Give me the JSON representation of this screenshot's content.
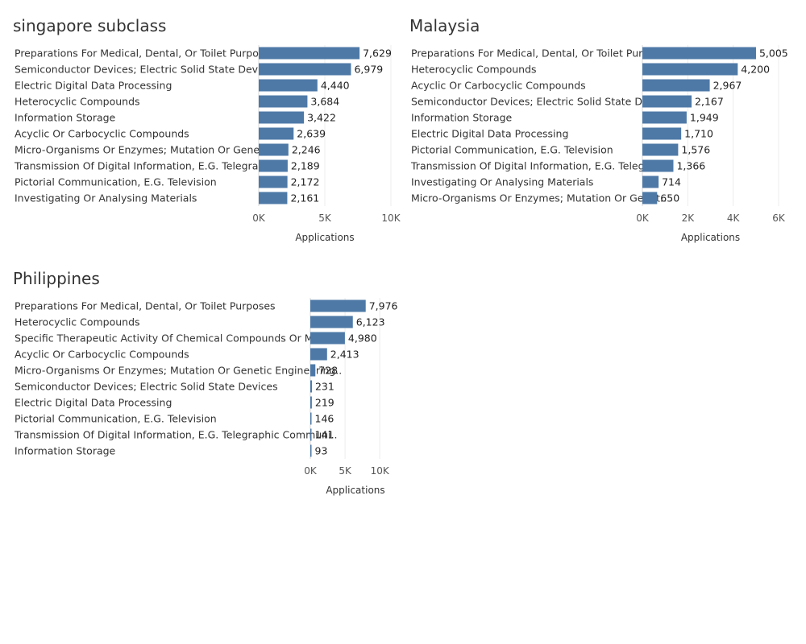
{
  "colors": {
    "bar": "#4e79a7",
    "text": "#333333",
    "axis_text": "#555555",
    "grid": "#ececec"
  },
  "chart_data": [
    {
      "type": "bar",
      "orientation": "horizontal",
      "title": "singapore subclass",
      "xlabel": "Applications",
      "xlim": [
        0,
        10000
      ],
      "xticks": [
        0,
        5000,
        10000
      ],
      "xtick_labels": [
        "0K",
        "5K",
        "10K"
      ],
      "categories": [
        "Preparations For Medical, Dental, Or Toilet Purposes",
        "Semiconductor Devices; Electric Solid State Devices",
        "Electric Digital Data Processing",
        "Heterocyclic Compounds",
        "Information Storage",
        "Acyclic Or Carbocyclic Compounds",
        "Micro-Organisms Or Enzymes; Mutation Or Genetic ..",
        "Transmission Of Digital Information, E.G. Telegraphi..",
        "Pictorial Communication, E.G. Television",
        "Investigating Or Analysing Materials"
      ],
      "values": [
        7629,
        6979,
        4440,
        3684,
        3422,
        2639,
        2246,
        2189,
        2172,
        2161
      ],
      "value_labels": [
        "7,629",
        "6,979",
        "4,440",
        "3,684",
        "3,422",
        "2,639",
        "2,246",
        "2,189",
        "2,172",
        "2,161"
      ]
    },
    {
      "type": "bar",
      "orientation": "horizontal",
      "title": "Malaysia",
      "xlabel": "Applications",
      "xlim": [
        0,
        6000
      ],
      "xticks": [
        0,
        2000,
        4000,
        6000
      ],
      "xtick_labels": [
        "0K",
        "2K",
        "4K",
        "6K"
      ],
      "categories": [
        "Preparations For Medical, Dental, Or Toilet Purpo..",
        "Heterocyclic Compounds",
        "Acyclic Or Carbocyclic Compounds",
        "Semiconductor Devices; Electric Solid State Devic..",
        "Information Storage",
        "Electric Digital Data Processing",
        "Pictorial Communication, E.G. Television",
        "Transmission Of Digital Information, E.G. Telegra..",
        "Investigating Or Analysing Materials",
        "Micro-Organisms Or Enzymes; Mutation Or Genet.."
      ],
      "values": [
        5005,
        4200,
        2967,
        2167,
        1949,
        1710,
        1576,
        1366,
        714,
        650
      ],
      "value_labels": [
        "5,005",
        "4,200",
        "2,967",
        "2,167",
        "1,949",
        "1,710",
        "1,576",
        "1,366",
        "714",
        "650"
      ]
    },
    {
      "type": "bar",
      "orientation": "horizontal",
      "title": "Philippines",
      "xlabel": "Applications",
      "xlim": [
        0,
        13000
      ],
      "xticks": [
        0,
        5000,
        10000
      ],
      "xtick_labels": [
        "0K",
        "5K",
        "10K"
      ],
      "categories": [
        "Preparations For Medical, Dental, Or Toilet Purposes",
        "Heterocyclic Compounds",
        "Specific Therapeutic Activity Of Chemical Compounds Or Medici..",
        "Acyclic Or Carbocyclic Compounds",
        "Micro-Organisms Or Enzymes; Mutation Or Genetic Engineering..",
        "Semiconductor Devices; Electric Solid State Devices",
        "Electric Digital Data Processing",
        "Pictorial Communication, E.G. Television",
        "Transmission Of Digital Information, E.G. Telegraphic Communi..",
        "Information Storage"
      ],
      "values": [
        7976,
        6123,
        4980,
        2413,
        728,
        231,
        219,
        146,
        141,
        93
      ],
      "value_labels": [
        "7,976",
        "6,123",
        "4,980",
        "2,413",
        "728",
        "231",
        "219",
        "146",
        "141",
        "93"
      ]
    }
  ]
}
